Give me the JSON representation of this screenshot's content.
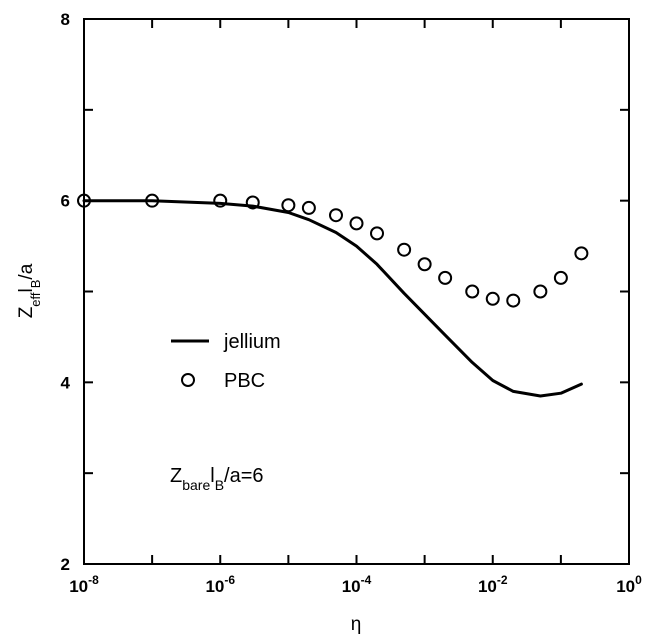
{
  "chart_data": {
    "type": "line",
    "xscale": "log",
    "xlim": [
      1e-08,
      1
    ],
    "ylim": [
      2,
      8
    ],
    "xlabel": "η",
    "ylabel": {
      "main": "Z",
      "sub1": "eff",
      "mid": "l",
      "sub2": "B",
      "tail": "/a"
    },
    "x_ticks": [
      {
        "base": "10",
        "exp": "-8",
        "value": 1e-08
      },
      {
        "base": "10",
        "exp": "-6",
        "value": 1e-06
      },
      {
        "base": "10",
        "exp": "-4",
        "value": 0.0001
      },
      {
        "base": "10",
        "exp": "-2",
        "value": 0.01
      },
      {
        "base": "10",
        "exp": "0",
        "value": 1
      }
    ],
    "y_ticks": [
      "2",
      "4",
      "6",
      "8"
    ],
    "grid": false,
    "legend_position": "lower-left",
    "series": [
      {
        "name": "jellium",
        "style": "line",
        "color": "#000000",
        "x": [
          1e-08,
          1e-07,
          1e-06,
          3e-06,
          1e-05,
          2e-05,
          5e-05,
          0.0001,
          0.0002,
          0.0005,
          0.001,
          0.002,
          0.005,
          0.01,
          0.02,
          0.05,
          0.1,
          0.2
        ],
        "y": [
          6.0,
          6.0,
          5.97,
          5.94,
          5.87,
          5.79,
          5.65,
          5.5,
          5.3,
          4.98,
          4.75,
          4.52,
          4.22,
          4.02,
          3.9,
          3.85,
          3.88,
          3.98
        ]
      },
      {
        "name": "PBC",
        "style": "markers",
        "marker": "open-circle",
        "color": "#000000",
        "x": [
          1e-08,
          1e-07,
          1e-06,
          3e-06,
          1e-05,
          2e-05,
          5e-05,
          0.0001,
          0.0002,
          0.0005,
          0.001,
          0.002,
          0.005,
          0.01,
          0.02,
          0.05,
          0.1,
          0.2
        ],
        "y": [
          6.0,
          6.0,
          6.0,
          5.98,
          5.95,
          5.92,
          5.84,
          5.75,
          5.64,
          5.46,
          5.3,
          5.15,
          5.0,
          4.92,
          4.9,
          5.0,
          5.15,
          5.42
        ]
      }
    ],
    "annotation": {
      "main": "Z",
      "sub1": "bare",
      "mid": "l",
      "sub2": "B",
      "tail": "/a=6"
    }
  }
}
